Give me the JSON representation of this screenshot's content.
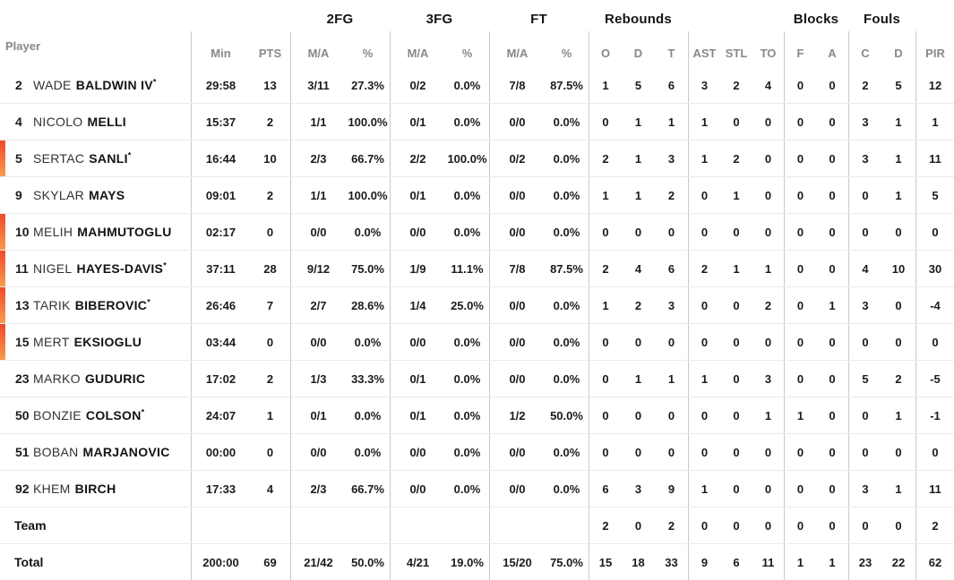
{
  "table": {
    "group_headers": {
      "fg2": "2FG",
      "fg3": "3FG",
      "ft": "FT",
      "rebounds": "Rebounds",
      "blocks": "Blocks",
      "fouls": "Fouls"
    },
    "column_headers": {
      "player": "Player",
      "min": "Min",
      "pts": "PTS",
      "ma": "M/A",
      "pct": "%",
      "o": "O",
      "d": "D",
      "t": "T",
      "ast": "AST",
      "stl": "STL",
      "to": "TO",
      "f": "F",
      "a": "A",
      "c": "C",
      "d2": "D",
      "pir": "PIR"
    }
  },
  "colors": {
    "highlight_bar_top": "#f0492d",
    "highlight_bar_bottom": "#f89b4d",
    "divider": "#c9c9cb",
    "row_separator": "#eaeaec",
    "header_text": "#88888c",
    "text": "#1b1b1d"
  },
  "rows": [
    {
      "num": "2",
      "first": "WADE",
      "last": "BALDWIN IV",
      "star": "*",
      "highlight": false,
      "min": "29:58",
      "pts": "13",
      "fg2ma": "3/11",
      "fg2pct": "27.3%",
      "fg3ma": "0/2",
      "fg3pct": "0.0%",
      "ftma": "7/8",
      "ftpct": "87.5%",
      "ro": "1",
      "rd": "5",
      "rt": "6",
      "ast": "3",
      "stl": "2",
      "to": "4",
      "bf": "0",
      "ba": "0",
      "fc": "2",
      "fd": "5",
      "pir": "12"
    },
    {
      "num": "4",
      "first": "NICOLO",
      "last": "MELLI",
      "highlight": false,
      "min": "15:37",
      "pts": "2",
      "fg2ma": "1/1",
      "fg2pct": "100.0%",
      "fg3ma": "0/1",
      "fg3pct": "0.0%",
      "ftma": "0/0",
      "ftpct": "0.0%",
      "ro": "0",
      "rd": "1",
      "rt": "1",
      "ast": "1",
      "stl": "0",
      "to": "0",
      "bf": "0",
      "ba": "0",
      "fc": "3",
      "fd": "1",
      "pir": "1"
    },
    {
      "num": "5",
      "first": "SERTAC",
      "last": "SANLI",
      "star": "*",
      "highlight": true,
      "min": "16:44",
      "pts": "10",
      "fg2ma": "2/3",
      "fg2pct": "66.7%",
      "fg3ma": "2/2",
      "fg3pct": "100.0%",
      "ftma": "0/2",
      "ftpct": "0.0%",
      "ro": "2",
      "rd": "1",
      "rt": "3",
      "ast": "1",
      "stl": "2",
      "to": "0",
      "bf": "0",
      "ba": "0",
      "fc": "3",
      "fd": "1",
      "pir": "11"
    },
    {
      "num": "9",
      "first": "SKYLAR",
      "last": "MAYS",
      "highlight": false,
      "min": "09:01",
      "pts": "2",
      "fg2ma": "1/1",
      "fg2pct": "100.0%",
      "fg3ma": "0/1",
      "fg3pct": "0.0%",
      "ftma": "0/0",
      "ftpct": "0.0%",
      "ro": "1",
      "rd": "1",
      "rt": "2",
      "ast": "0",
      "stl": "1",
      "to": "0",
      "bf": "0",
      "ba": "0",
      "fc": "0",
      "fd": "1",
      "pir": "5"
    },
    {
      "num": "10",
      "first": "MELIH",
      "last": "MAHMUTOGLU",
      "highlight": true,
      "min": "02:17",
      "pts": "0",
      "fg2ma": "0/0",
      "fg2pct": "0.0%",
      "fg3ma": "0/0",
      "fg3pct": "0.0%",
      "ftma": "0/0",
      "ftpct": "0.0%",
      "ro": "0",
      "rd": "0",
      "rt": "0",
      "ast": "0",
      "stl": "0",
      "to": "0",
      "bf": "0",
      "ba": "0",
      "fc": "0",
      "fd": "0",
      "pir": "0"
    },
    {
      "num": "11",
      "first": "NIGEL",
      "last": "HAYES-DAVIS",
      "star": "*",
      "highlight": true,
      "min": "37:11",
      "pts": "28",
      "fg2ma": "9/12",
      "fg2pct": "75.0%",
      "fg3ma": "1/9",
      "fg3pct": "11.1%",
      "ftma": "7/8",
      "ftpct": "87.5%",
      "ro": "2",
      "rd": "4",
      "rt": "6",
      "ast": "2",
      "stl": "1",
      "to": "1",
      "bf": "0",
      "ba": "0",
      "fc": "4",
      "fd": "10",
      "pir": "30"
    },
    {
      "num": "13",
      "first": "TARIK",
      "last": "BIBEROVIC",
      "star": "*",
      "highlight": true,
      "min": "26:46",
      "pts": "7",
      "fg2ma": "2/7",
      "fg2pct": "28.6%",
      "fg3ma": "1/4",
      "fg3pct": "25.0%",
      "ftma": "0/0",
      "ftpct": "0.0%",
      "ro": "1",
      "rd": "2",
      "rt": "3",
      "ast": "0",
      "stl": "0",
      "to": "2",
      "bf": "0",
      "ba": "1",
      "fc": "3",
      "fd": "0",
      "pir": "-4"
    },
    {
      "num": "15",
      "first": "MERT",
      "last": "EKSIOGLU",
      "highlight": true,
      "min": "03:44",
      "pts": "0",
      "fg2ma": "0/0",
      "fg2pct": "0.0%",
      "fg3ma": "0/0",
      "fg3pct": "0.0%",
      "ftma": "0/0",
      "ftpct": "0.0%",
      "ro": "0",
      "rd": "0",
      "rt": "0",
      "ast": "0",
      "stl": "0",
      "to": "0",
      "bf": "0",
      "ba": "0",
      "fc": "0",
      "fd": "0",
      "pir": "0"
    },
    {
      "num": "23",
      "first": "MARKO",
      "last": "GUDURIC",
      "highlight": false,
      "min": "17:02",
      "pts": "2",
      "fg2ma": "1/3",
      "fg2pct": "33.3%",
      "fg3ma": "0/1",
      "fg3pct": "0.0%",
      "ftma": "0/0",
      "ftpct": "0.0%",
      "ro": "0",
      "rd": "1",
      "rt": "1",
      "ast": "1",
      "stl": "0",
      "to": "3",
      "bf": "0",
      "ba": "0",
      "fc": "5",
      "fd": "2",
      "pir": "-5"
    },
    {
      "num": "50",
      "first": "BONZIE",
      "last": "COLSON",
      "star": "*",
      "highlight": false,
      "min": "24:07",
      "pts": "1",
      "fg2ma": "0/1",
      "fg2pct": "0.0%",
      "fg3ma": "0/1",
      "fg3pct": "0.0%",
      "ftma": "1/2",
      "ftpct": "50.0%",
      "ro": "0",
      "rd": "0",
      "rt": "0",
      "ast": "0",
      "stl": "0",
      "to": "1",
      "bf": "1",
      "ba": "0",
      "fc": "0",
      "fd": "1",
      "pir": "-1"
    },
    {
      "num": "51",
      "first": "BOBAN",
      "last": "MARJANOVIC",
      "highlight": false,
      "min": "00:00",
      "pts": "0",
      "fg2ma": "0/0",
      "fg2pct": "0.0%",
      "fg3ma": "0/0",
      "fg3pct": "0.0%",
      "ftma": "0/0",
      "ftpct": "0.0%",
      "ro": "0",
      "rd": "0",
      "rt": "0",
      "ast": "0",
      "stl": "0",
      "to": "0",
      "bf": "0",
      "ba": "0",
      "fc": "0",
      "fd": "0",
      "pir": "0"
    },
    {
      "num": "92",
      "first": "KHEM",
      "last": "BIRCH",
      "highlight": false,
      "min": "17:33",
      "pts": "4",
      "fg2ma": "2/3",
      "fg2pct": "66.7%",
      "fg3ma": "0/0",
      "fg3pct": "0.0%",
      "ftma": "0/0",
      "ftpct": "0.0%",
      "ro": "6",
      "rd": "3",
      "rt": "9",
      "ast": "1",
      "stl": "0",
      "to": "0",
      "bf": "0",
      "ba": "0",
      "fc": "3",
      "fd": "1",
      "pir": "11"
    },
    {
      "label": "Team",
      "highlight": false,
      "ro": "2",
      "rd": "0",
      "rt": "2",
      "ast": "0",
      "stl": "0",
      "to": "0",
      "bf": "0",
      "ba": "0",
      "fc": "0",
      "fd": "0",
      "pir": "2"
    },
    {
      "label": "Total",
      "highlight": false,
      "min": "200:00",
      "pts": "69",
      "fg2ma": "21/42",
      "fg2pct": "50.0%",
      "fg3ma": "4/21",
      "fg3pct": "19.0%",
      "ftma": "15/20",
      "ftpct": "75.0%",
      "ro": "15",
      "rd": "18",
      "rt": "33",
      "ast": "9",
      "stl": "6",
      "to": "11",
      "bf": "1",
      "ba": "1",
      "fc": "23",
      "fd": "22",
      "pir": "62"
    }
  ]
}
